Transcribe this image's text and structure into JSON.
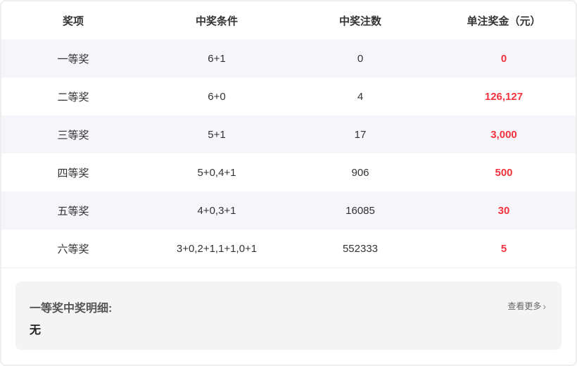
{
  "table": {
    "headers": [
      "奖项",
      "中奖条件",
      "中奖注数",
      "单注奖金（元）"
    ],
    "rows": [
      [
        "一等奖",
        "6+1",
        "0",
        "0"
      ],
      [
        "二等奖",
        "6+0",
        "4",
        "126,127"
      ],
      [
        "三等奖",
        "5+1",
        "17",
        "3,000"
      ],
      [
        "四等奖",
        "5+0,4+1",
        "906",
        "500"
      ],
      [
        "五等奖",
        "4+0,3+1",
        "16085",
        "30"
      ],
      [
        "六等奖",
        "3+0,2+1,1+1,0+1",
        "552333",
        "5"
      ]
    ]
  },
  "detail": {
    "title": "一等奖中奖明细:",
    "value": "无",
    "more_label": "查看更多",
    "more_icon": "chevron-right-icon"
  },
  "colors": {
    "prize": "#f5333f",
    "alt_row": "#f5f5fa",
    "detail_bg": "#f4f4f4"
  }
}
